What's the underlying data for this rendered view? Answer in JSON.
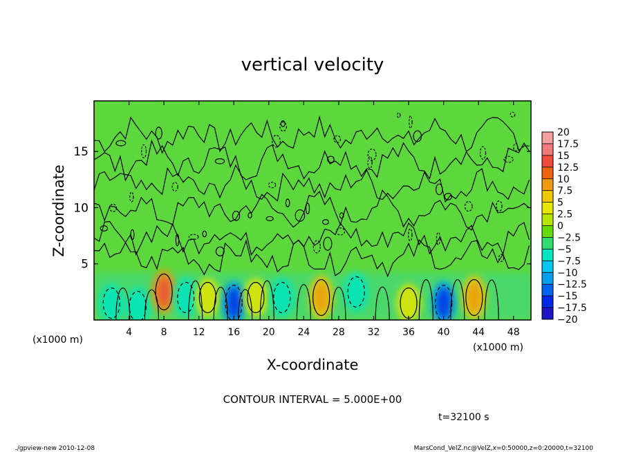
{
  "chart_data": {
    "type": "heatmap",
    "title": "vertical velocity",
    "xlabel": "X-coordinate",
    "ylabel": "Z-coordinate",
    "x_unit_left": "(x1000 m)",
    "x_unit_right": "(x1000 m)",
    "xlim": [
      0,
      50
    ],
    "ylim": [
      0,
      19.5
    ],
    "x_ticks": [
      4,
      8,
      12,
      16,
      20,
      24,
      28,
      32,
      36,
      40,
      44,
      48
    ],
    "y_ticks": [
      5,
      10,
      15
    ],
    "colorbar": {
      "levels": [
        "20",
        "17.5",
        "15",
        "12.5",
        "10",
        "7.5",
        "5",
        "2.5",
        "0",
        "−2.5",
        "−5",
        "−7.5",
        "−10",
        "−12.5",
        "−15",
        "−17.5",
        "−20"
      ],
      "colors": [
        "#f3a0a0",
        "#f07a7a",
        "#f04a3c",
        "#f06410",
        "#f09a10",
        "#f0c800",
        "#e6e600",
        "#b4e600",
        "#64dc00",
        "#30dc70",
        "#00e6c0",
        "#00c8f0",
        "#00a0f0",
        "#0064f0",
        "#0028e6",
        "#1e14c8",
        "#6e14c8"
      ]
    },
    "contour_interval": "CONTOUR INTERVAL = 5.000E+00",
    "time_label": "t=32100 s",
    "cells": [
      {
        "x": 2.0,
        "z": 1.5,
        "w": -5
      },
      {
        "x": 5.0,
        "z": 1.2,
        "w": -5
      },
      {
        "x": 8.0,
        "z": 2.5,
        "w": 10
      },
      {
        "x": 10.5,
        "z": 2.0,
        "w": -5
      },
      {
        "x": 13.0,
        "z": 2.0,
        "w": 5
      },
      {
        "x": 16.0,
        "z": 1.5,
        "w": -10
      },
      {
        "x": 18.5,
        "z": 2.0,
        "w": 5
      },
      {
        "x": 21.5,
        "z": 2.0,
        "w": -5
      },
      {
        "x": 26.0,
        "z": 2.0,
        "w": 7.5
      },
      {
        "x": 30.0,
        "z": 2.5,
        "w": -5
      },
      {
        "x": 36.0,
        "z": 1.5,
        "w": 5
      },
      {
        "x": 40.0,
        "z": 1.5,
        "w": -10
      },
      {
        "x": 43.5,
        "z": 2.0,
        "w": 7.5
      }
    ]
  },
  "footer": {
    "left": "./gpview-new  2010-12-08",
    "right": "MarsCond_VelZ.nc@VelZ,x=0:50000,z=0:20000,t=32100"
  }
}
